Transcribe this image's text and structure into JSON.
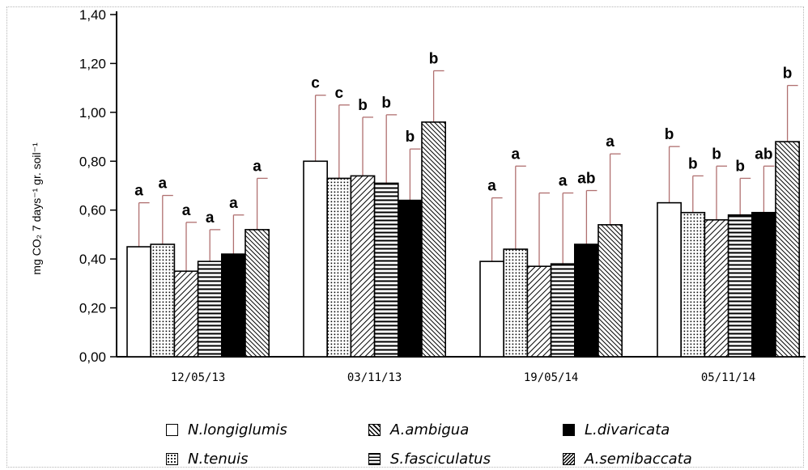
{
  "chart_data": {
    "type": "bar",
    "ylabel": "mg CO₂ 7 days⁻¹ gr. soil⁻¹",
    "ylim": [
      0,
      1.4
    ],
    "yticks": [
      "0,00",
      "0,20",
      "0,40",
      "0,60",
      "0,80",
      "1,00",
      "1,20",
      "1,40"
    ],
    "categories": [
      "12/05/13",
      "03/11/13",
      "19/05/14",
      "05/11/14"
    ],
    "series": [
      {
        "name": "N.longiglumis",
        "pattern": "white",
        "values": [
          0.45,
          0.8,
          0.39,
          0.63
        ],
        "errors": [
          0.63,
          1.07,
          0.65,
          0.86
        ],
        "letters": [
          "a",
          "c",
          "a",
          "b"
        ]
      },
      {
        "name": "N.tenuis",
        "pattern": "dots",
        "values": [
          0.46,
          0.73,
          0.44,
          0.59
        ],
        "errors": [
          0.66,
          1.03,
          0.78,
          0.74
        ],
        "letters": [
          "a",
          "c",
          "a",
          "b"
        ]
      },
      {
        "name": "A.ambigua",
        "pattern": "diag",
        "values": [
          0.35,
          0.74,
          0.37,
          0.56
        ],
        "errors": [
          0.55,
          0.98,
          0.67,
          0.78
        ],
        "letters": [
          "a",
          "b",
          "",
          "b"
        ]
      },
      {
        "name": "S.fasciculatus",
        "pattern": "hlines",
        "values": [
          0.39,
          0.71,
          0.38,
          0.58
        ],
        "errors": [
          0.52,
          0.99,
          0.67,
          0.73
        ],
        "letters": [
          "a",
          "b",
          "a",
          "b"
        ]
      },
      {
        "name": "L.divaricata",
        "pattern": "black",
        "values": [
          0.42,
          0.64,
          0.46,
          0.59
        ],
        "errors": [
          0.58,
          0.85,
          0.68,
          0.78
        ],
        "letters": [
          "a",
          "b",
          "ab",
          "ab"
        ]
      },
      {
        "name": "A.semibaccata",
        "pattern": "dense",
        "values": [
          0.52,
          0.96,
          0.54,
          0.88
        ],
        "errors": [
          0.73,
          1.17,
          0.83,
          1.11
        ],
        "letters": [
          "a",
          "b",
          "a",
          "b"
        ]
      }
    ],
    "legend_position": "bottom",
    "grid": false
  },
  "colors": {
    "bar_outline": "#000000",
    "error_bar": "#b07070",
    "axis": "#000000",
    "text": "#000000"
  }
}
